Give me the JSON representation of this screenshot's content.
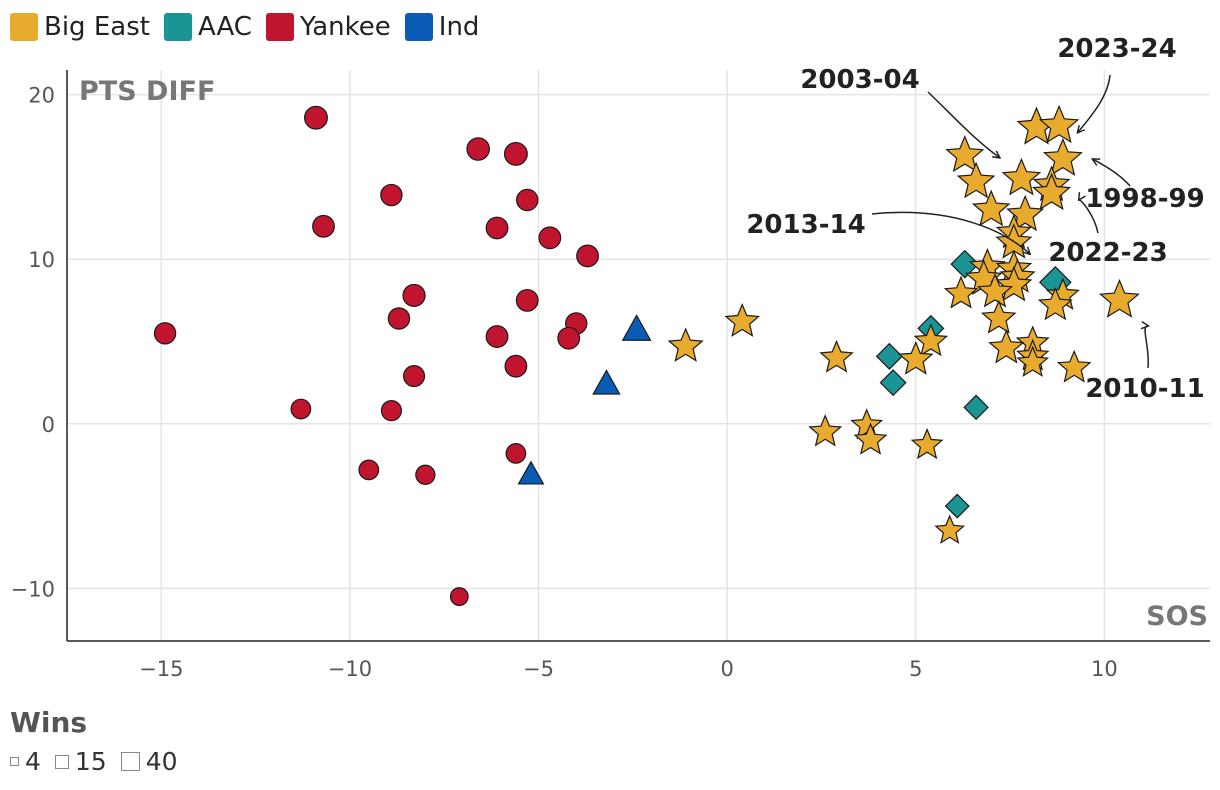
{
  "legend": {
    "groups": [
      {
        "label": "Big East",
        "color": "#E9AB2E",
        "shape": "star"
      },
      {
        "label": "AAC",
        "color": "#1A9494",
        "shape": "diamond"
      },
      {
        "label": "Yankee",
        "color": "#C1152F",
        "shape": "circle"
      },
      {
        "label": "Ind",
        "color": "#0A5BB5",
        "shape": "triangle"
      }
    ]
  },
  "size_legend": {
    "title": "Wins",
    "items": [
      {
        "label": "4",
        "wins": 4
      },
      {
        "label": "15",
        "wins": 15
      },
      {
        "label": "40",
        "wins": 40
      }
    ]
  },
  "chart_data": {
    "type": "scatter",
    "xlabel": "SOS",
    "ylabel": "PTS DIFF",
    "xlim": [
      -17.5,
      12.8
    ],
    "ylim": [
      -13.2,
      21.5
    ],
    "xticks": [
      -15,
      -10,
      -5,
      0,
      5,
      10
    ],
    "yticks": [
      -10,
      0,
      10,
      20
    ],
    "xtick_labels": [
      "−15",
      "−10",
      "−5",
      "0",
      "5",
      "10"
    ],
    "ytick_labels": [
      "−10",
      "0",
      "10",
      "20"
    ],
    "grid": true,
    "series": [
      {
        "name": "Big East",
        "points": [
          {
            "x": 8.2,
            "y": 18.0,
            "wins": 30
          },
          {
            "x": 8.8,
            "y": 18.1,
            "wins": 31
          },
          {
            "x": 6.3,
            "y": 16.3,
            "wins": 28
          },
          {
            "x": 8.9,
            "y": 16.1,
            "wins": 30
          },
          {
            "x": 7.8,
            "y": 14.9,
            "wins": 29
          },
          {
            "x": 6.6,
            "y": 14.7,
            "wins": 27
          },
          {
            "x": 8.6,
            "y": 14.5,
            "wins": 25
          },
          {
            "x": 8.6,
            "y": 14.0,
            "wins": 28
          },
          {
            "x": 7.0,
            "y": 13.0,
            "wins": 27
          },
          {
            "x": 7.9,
            "y": 12.7,
            "wins": 26
          },
          {
            "x": 7.6,
            "y": 11.6,
            "wins": 22
          },
          {
            "x": 7.6,
            "y": 11.0,
            "wins": 24
          },
          {
            "x": 6.9,
            "y": 9.5,
            "wins": 24
          },
          {
            "x": 7.6,
            "y": 9.4,
            "wins": 23
          },
          {
            "x": 7.7,
            "y": 8.9,
            "wins": 22
          },
          {
            "x": 6.8,
            "y": 8.8,
            "wins": 25
          },
          {
            "x": 7.6,
            "y": 8.4,
            "wins": 24
          },
          {
            "x": 7.1,
            "y": 8.0,
            "wins": 22
          },
          {
            "x": 6.2,
            "y": 7.9,
            "wins": 19
          },
          {
            "x": 8.9,
            "y": 7.8,
            "wins": 18
          },
          {
            "x": 10.4,
            "y": 7.5,
            "wins": 32
          },
          {
            "x": 8.7,
            "y": 7.2,
            "wins": 20
          },
          {
            "x": 7.2,
            "y": 6.4,
            "wins": 21
          },
          {
            "x": 0.4,
            "y": 6.2,
            "wins": 21
          },
          {
            "x": 5.4,
            "y": 5.0,
            "wins": 19
          },
          {
            "x": 8.1,
            "y": 4.9,
            "wins": 18
          },
          {
            "x": 7.4,
            "y": 4.6,
            "wins": 22
          },
          {
            "x": -1.1,
            "y": 4.7,
            "wins": 22
          },
          {
            "x": 8.1,
            "y": 4.1,
            "wins": 17
          },
          {
            "x": 2.9,
            "y": 4.0,
            "wins": 19
          },
          {
            "x": 5.0,
            "y": 3.9,
            "wins": 21
          },
          {
            "x": 8.1,
            "y": 3.7,
            "wins": 16
          },
          {
            "x": 9.2,
            "y": 3.4,
            "wins": 19
          },
          {
            "x": 3.7,
            "y": -0.1,
            "wins": 16
          },
          {
            "x": 2.6,
            "y": -0.5,
            "wins": 18
          },
          {
            "x": 3.8,
            "y": -1.0,
            "wins": 18
          },
          {
            "x": 5.3,
            "y": -1.3,
            "wins": 16
          },
          {
            "x": 5.9,
            "y": -6.5,
            "wins": 13
          }
        ]
      },
      {
        "name": "AAC",
        "points": [
          {
            "x": 6.3,
            "y": 9.7,
            "wins": 22
          },
          {
            "x": 8.7,
            "y": 8.6,
            "wins": 32
          },
          {
            "x": 5.4,
            "y": 5.8,
            "wins": 18
          },
          {
            "x": 4.3,
            "y": 4.1,
            "wins": 18
          },
          {
            "x": 4.4,
            "y": 2.5,
            "wins": 18
          },
          {
            "x": 6.6,
            "y": 1.0,
            "wins": 15
          },
          {
            "x": 6.1,
            "y": -5.0,
            "wins": 14
          }
        ]
      },
      {
        "name": "Yankee",
        "points": [
          {
            "x": -10.9,
            "y": 18.6,
            "wins": 22
          },
          {
            "x": -6.6,
            "y": 16.7,
            "wins": 21
          },
          {
            "x": -5.6,
            "y": 16.4,
            "wins": 22
          },
          {
            "x": -8.9,
            "y": 13.9,
            "wins": 18
          },
          {
            "x": -5.3,
            "y": 13.6,
            "wins": 18
          },
          {
            "x": -10.7,
            "y": 12.0,
            "wins": 19
          },
          {
            "x": -6.1,
            "y": 11.9,
            "wins": 19
          },
          {
            "x": -4.7,
            "y": 11.3,
            "wins": 19
          },
          {
            "x": -3.7,
            "y": 10.2,
            "wins": 19
          },
          {
            "x": -8.3,
            "y": 7.8,
            "wins": 20
          },
          {
            "x": -5.3,
            "y": 7.5,
            "wins": 19
          },
          {
            "x": -8.7,
            "y": 6.4,
            "wins": 18
          },
          {
            "x": -4.0,
            "y": 6.1,
            "wins": 18
          },
          {
            "x": -14.9,
            "y": 5.5,
            "wins": 18
          },
          {
            "x": -6.1,
            "y": 5.3,
            "wins": 19
          },
          {
            "x": -4.2,
            "y": 5.2,
            "wins": 19
          },
          {
            "x": -5.6,
            "y": 3.5,
            "wins": 19
          },
          {
            "x": -8.3,
            "y": 2.9,
            "wins": 17
          },
          {
            "x": -11.3,
            "y": 0.9,
            "wins": 14
          },
          {
            "x": -8.9,
            "y": 0.8,
            "wins": 15
          },
          {
            "x": -5.6,
            "y": -1.8,
            "wins": 14
          },
          {
            "x": -9.5,
            "y": -2.8,
            "wins": 14
          },
          {
            "x": -8.0,
            "y": -3.1,
            "wins": 13
          },
          {
            "x": -7.1,
            "y": -10.5,
            "wins": 10
          }
        ]
      },
      {
        "name": "Ind",
        "points": [
          {
            "x": -2.4,
            "y": 5.7,
            "wins": 21
          },
          {
            "x": -3.2,
            "y": 2.4,
            "wins": 18
          },
          {
            "x": -5.2,
            "y": -3.1,
            "wins": 15
          }
        ]
      }
    ],
    "annotations": [
      {
        "text": "2023-24",
        "x": 8.7,
        "y": 18.1
      },
      {
        "text": "2003-04",
        "x": 7.5,
        "y": 15.3
      },
      {
        "text": "1998-99",
        "x": 9.2,
        "y": 16.1
      },
      {
        "text": "2013-14",
        "x": 8.3,
        "y": 9.2
      },
      {
        "text": "2022-23",
        "x": 9.0,
        "y": 14.2
      },
      {
        "text": "2010-11",
        "x": 10.8,
        "y": 6.8
      }
    ]
  }
}
